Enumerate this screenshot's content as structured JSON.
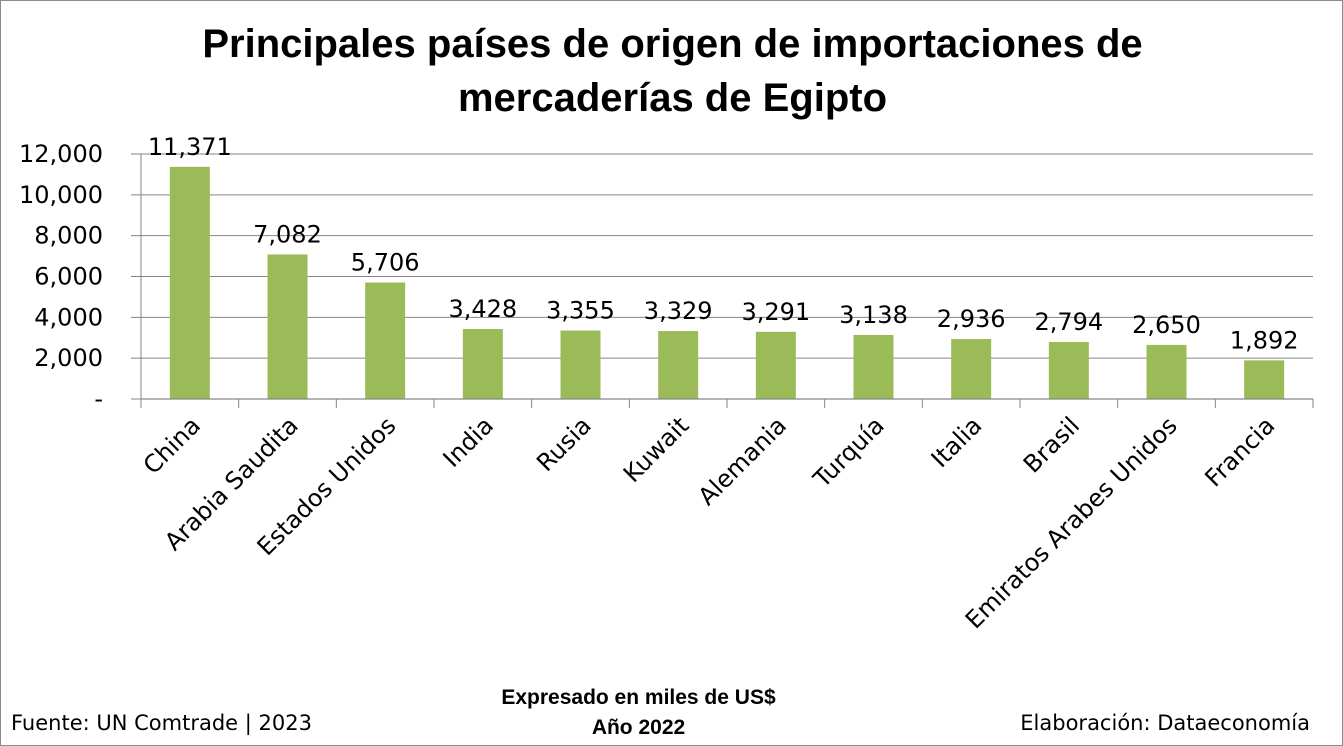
{
  "chart_data": {
    "type": "bar",
    "title": "Principales países de origen de importaciones de\nmercaderías de Egipto",
    "subtitle_line1": "Expresado en miles de US$",
    "subtitle_line2": "Año 2022",
    "xlabel": "",
    "ylabel": "",
    "ylim": [
      0,
      12000
    ],
    "yticks": [
      0,
      2000,
      4000,
      6000,
      8000,
      10000,
      12000
    ],
    "ytick_labels": [
      "-",
      "2,000",
      "4,000",
      "6,000",
      "8,000",
      "10,000",
      "12,000"
    ],
    "grid": true,
    "legend": "none",
    "bar_color": "#9bbb59",
    "categories": [
      "China",
      "Arabia Saudita",
      "Estados Unidos",
      "India",
      "Rusia",
      "Kuwait",
      "Alemania",
      "Turquía",
      "Italia",
      "Brasil",
      "Emiratos Arabes Unidos",
      "Francia"
    ],
    "values": [
      11371,
      7082,
      5706,
      3428,
      3355,
      3329,
      3291,
      3138,
      2936,
      2794,
      2650,
      1892
    ],
    "value_labels": [
      "11,371",
      "7,082",
      "5,706",
      "3,428",
      "3,355",
      "3,329",
      "3,291",
      "3,138",
      "2,936",
      "2,794",
      "2,650",
      "1,892"
    ]
  },
  "footer": {
    "source": "Fuente: UN Comtrade | 2023",
    "credit": "Elaboración: Dataeconomía"
  }
}
